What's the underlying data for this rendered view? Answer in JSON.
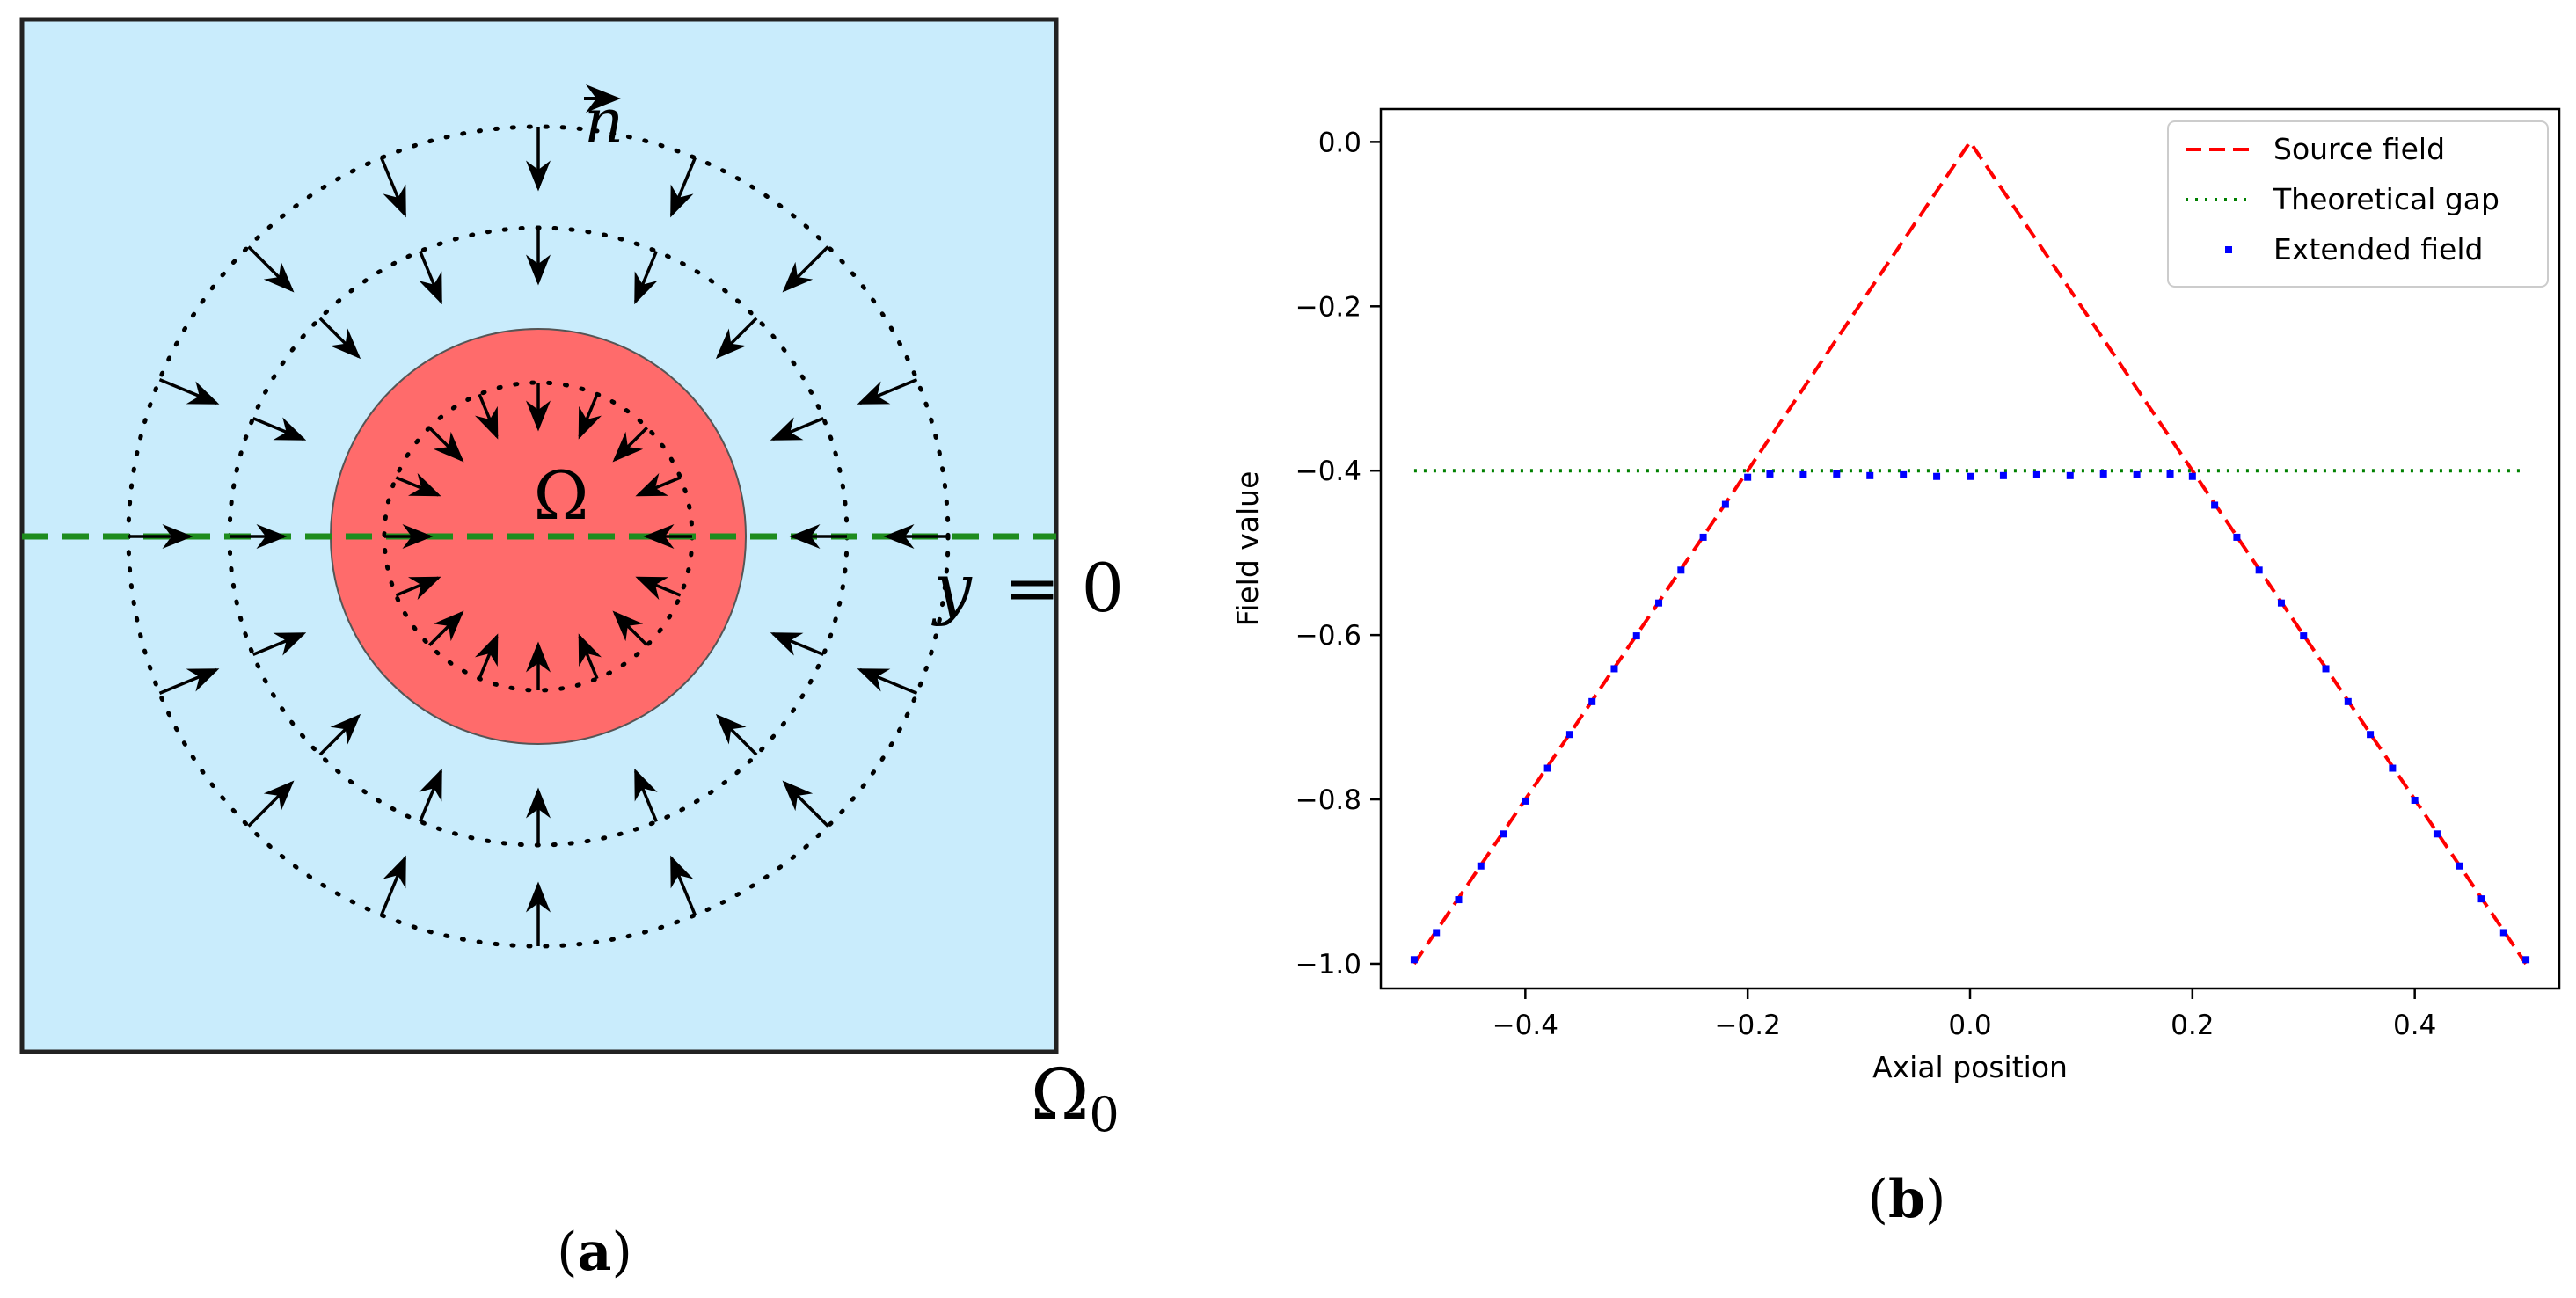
{
  "panel_a": {
    "label_inner_domain": "Ω",
    "label_outer_domain": "Ω",
    "label_outer_domain_sub": "0",
    "label_normal": "n",
    "label_line_y": "y",
    "label_line_eq": "= 0",
    "caption_open": "(",
    "caption_letter": "a",
    "caption_close": ")",
    "colors": {
      "background": "#c9ecfc",
      "inner_disk": "#ff6b6b",
      "axis_line": "#1e8c1e",
      "arrows": "#000000"
    }
  },
  "panel_b": {
    "caption_open": "(",
    "caption_letter": "b",
    "caption_close": ")"
  },
  "chart_data": {
    "type": "line",
    "xlabel": "Axial position",
    "ylabel": "Field value",
    "xlim": [
      -0.53,
      0.53
    ],
    "ylim": [
      -1.03,
      0.04
    ],
    "xticks": [
      -0.4,
      -0.2,
      0.0,
      0.2,
      0.4
    ],
    "xtick_labels": [
      "−0.4",
      "−0.2",
      "0.0",
      "0.2",
      "0.4"
    ],
    "yticks": [
      0.0,
      -0.2,
      -0.4,
      -0.6,
      -0.8,
      -1.0
    ],
    "ytick_labels": [
      "0.0",
      "−0.2",
      "−0.4",
      "−0.6",
      "−0.8",
      "−1.0"
    ],
    "grid": false,
    "legend_position": "top-right",
    "series": [
      {
        "name": "Source field",
        "style": "dashed",
        "color": "#ff0000",
        "x": [
          -0.5,
          0.0,
          0.5
        ],
        "y": [
          -1.0,
          0.0,
          -1.0
        ]
      },
      {
        "name": "Theoretical gap",
        "style": "dotted",
        "color": "#008000",
        "x": [
          -0.5,
          0.5
        ],
        "y": [
          -0.4,
          -0.4
        ]
      },
      {
        "name": "Extended field",
        "style": "markers",
        "color": "#0000ff",
        "x": [
          -0.5,
          -0.48,
          -0.46,
          -0.44,
          -0.42,
          -0.4,
          -0.38,
          -0.36,
          -0.34,
          -0.32,
          -0.3,
          -0.28,
          -0.26,
          -0.24,
          -0.22,
          -0.2,
          -0.18,
          -0.15,
          -0.12,
          -0.09,
          -0.06,
          -0.03,
          0.0,
          0.03,
          0.06,
          0.09,
          0.12,
          0.15,
          0.18,
          0.2,
          0.22,
          0.24,
          0.26,
          0.28,
          0.3,
          0.32,
          0.34,
          0.36,
          0.38,
          0.4,
          0.42,
          0.44,
          0.46,
          0.48,
          0.5
        ],
        "y": [
          -0.995,
          -0.962,
          -0.922,
          -0.881,
          -0.842,
          -0.802,
          -0.762,
          -0.721,
          -0.681,
          -0.641,
          -0.601,
          -0.561,
          -0.521,
          -0.481,
          -0.441,
          -0.408,
          -0.404,
          -0.405,
          -0.404,
          -0.406,
          -0.405,
          -0.407,
          -0.407,
          -0.406,
          -0.405,
          -0.406,
          -0.404,
          -0.405,
          -0.404,
          -0.407,
          -0.442,
          -0.481,
          -0.521,
          -0.561,
          -0.601,
          -0.641,
          -0.681,
          -0.721,
          -0.762,
          -0.801,
          -0.842,
          -0.881,
          -0.921,
          -0.962,
          -0.995
        ]
      }
    ]
  }
}
